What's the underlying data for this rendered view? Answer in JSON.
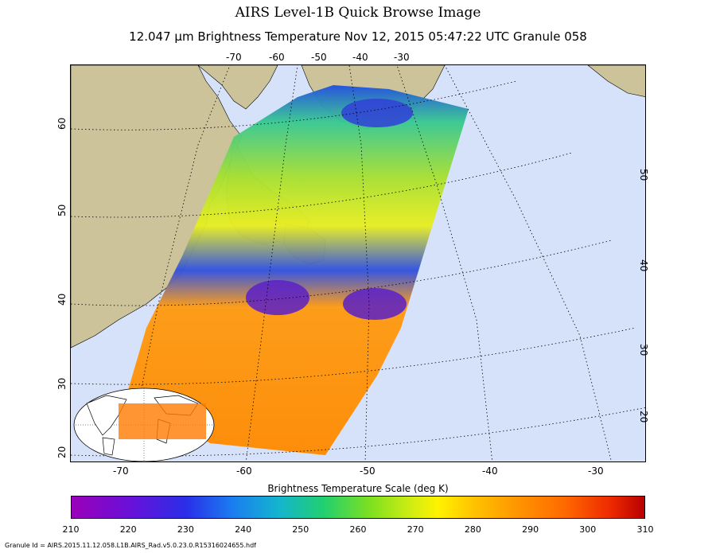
{
  "title": "AIRS Level-1B Quick Browse Image",
  "subtitle": "12.047 μm Brightness Temperature    Nov 12, 2015 05:47:22 UTC  Granule 058",
  "top_lon_ticks": [
    "-70",
    "-60",
    "-50",
    "-40",
    "-30"
  ],
  "bottom_lon_ticks": [
    "-70",
    "-60",
    "-50",
    "-40",
    "-30"
  ],
  "left_lat_ticks": [
    "60",
    "50",
    "40",
    "30",
    "20"
  ],
  "right_lat_ticks": [
    "50",
    "40",
    "30",
    "20"
  ],
  "colorbar": {
    "title": "Brightness Temperature Scale (deg K)",
    "labels": [
      "210",
      "220",
      "230",
      "240",
      "250",
      "260",
      "270",
      "280",
      "290",
      "300",
      "310"
    ],
    "min": 210,
    "max": 310
  },
  "granule_id": "Granule Id = AIRS.2015.11.12.058.L1B.AIRS_Rad.v5.0.23.0.R15316024655.hdf",
  "colors": {
    "ocean": "#d6e2fa",
    "land": "#cdc39a",
    "graticule": "#000000"
  },
  "icons": {
    "inset_globe": "world-overview-map-icon"
  }
}
